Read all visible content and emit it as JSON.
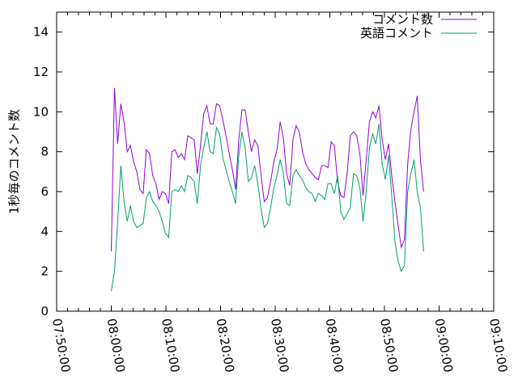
{
  "chart_data": {
    "type": "line",
    "ylabel": "1秒毎のコメント数",
    "xlim": [
      "07:50:00",
      "09:10:00"
    ],
    "ylim": [
      0,
      15
    ],
    "xticks": [
      "07:50:00",
      "08:00:00",
      "08:10:00",
      "08:20:00",
      "08:30:00",
      "08:40:00",
      "08:50:00",
      "09:00:00",
      "09:10:00"
    ],
    "yticks": [
      0,
      2,
      4,
      6,
      8,
      10,
      12,
      14
    ],
    "grid": false,
    "legend_position": "top-right",
    "colors": {
      "series1": "#9400d3",
      "series2": "#009e73"
    },
    "series": [
      {
        "name": "コメント数",
        "color": "#9400d3",
        "points": [
          [
            "08:00:00",
            3.0
          ],
          [
            "08:00:35",
            11.2
          ],
          [
            "08:01:10",
            8.4
          ],
          [
            "08:01:45",
            10.4
          ],
          [
            "08:02:20",
            9.5
          ],
          [
            "08:02:55",
            8.0
          ],
          [
            "08:03:30",
            8.3
          ],
          [
            "08:04:05",
            7.5
          ],
          [
            "08:04:40",
            7.0
          ],
          [
            "08:05:15",
            6.1
          ],
          [
            "08:05:50",
            5.9
          ],
          [
            "08:06:25",
            8.1
          ],
          [
            "08:07:00",
            7.9
          ],
          [
            "08:07:35",
            6.8
          ],
          [
            "08:08:10",
            6.4
          ],
          [
            "08:08:45",
            5.6
          ],
          [
            "08:09:20",
            6.0
          ],
          [
            "08:09:55",
            5.9
          ],
          [
            "08:10:30",
            5.4
          ],
          [
            "08:11:05",
            8.0
          ],
          [
            "08:11:40",
            8.1
          ],
          [
            "08:12:15",
            7.7
          ],
          [
            "08:12:50",
            7.9
          ],
          [
            "08:13:25",
            7.6
          ],
          [
            "08:14:00",
            8.8
          ],
          [
            "08:14:35",
            8.7
          ],
          [
            "08:15:10",
            8.6
          ],
          [
            "08:15:45",
            6.9
          ],
          [
            "08:16:20",
            8.3
          ],
          [
            "08:16:55",
            9.9
          ],
          [
            "08:17:30",
            10.3
          ],
          [
            "08:18:05",
            9.4
          ],
          [
            "08:18:40",
            9.4
          ],
          [
            "08:19:15",
            10.4
          ],
          [
            "08:19:50",
            10.3
          ],
          [
            "08:20:25",
            9.6
          ],
          [
            "08:21:00",
            8.8
          ],
          [
            "08:21:35",
            7.9
          ],
          [
            "08:22:10",
            7.1
          ],
          [
            "08:22:45",
            6.1
          ],
          [
            "08:23:20",
            8.6
          ],
          [
            "08:23:55",
            10.1
          ],
          [
            "08:24:30",
            10.1
          ],
          [
            "08:25:05",
            9.0
          ],
          [
            "08:25:40",
            8.0
          ],
          [
            "08:26:15",
            8.6
          ],
          [
            "08:26:50",
            8.3
          ],
          [
            "08:27:25",
            6.8
          ],
          [
            "08:28:00",
            5.5
          ],
          [
            "08:28:35",
            5.7
          ],
          [
            "08:29:10",
            6.5
          ],
          [
            "08:29:45",
            7.5
          ],
          [
            "08:30:20",
            8.1
          ],
          [
            "08:30:55",
            9.5
          ],
          [
            "08:31:30",
            8.7
          ],
          [
            "08:32:05",
            6.9
          ],
          [
            "08:32:40",
            6.3
          ],
          [
            "08:33:15",
            8.6
          ],
          [
            "08:33:50",
            9.3
          ],
          [
            "08:34:25",
            9.0
          ],
          [
            "08:35:00",
            8.0
          ],
          [
            "08:35:35",
            7.4
          ],
          [
            "08:36:10",
            7.1
          ],
          [
            "08:36:45",
            6.9
          ],
          [
            "08:37:20",
            6.7
          ],
          [
            "08:37:55",
            6.6
          ],
          [
            "08:38:30",
            7.3
          ],
          [
            "08:39:05",
            7.3
          ],
          [
            "08:39:40",
            7.2
          ],
          [
            "08:40:15",
            8.5
          ],
          [
            "08:40:50",
            8.3
          ],
          [
            "08:41:25",
            6.5
          ],
          [
            "08:42:00",
            5.8
          ],
          [
            "08:42:35",
            5.7
          ],
          [
            "08:43:10",
            6.9
          ],
          [
            "08:43:45",
            8.8
          ],
          [
            "08:44:20",
            9.0
          ],
          [
            "08:44:55",
            8.8
          ],
          [
            "08:45:30",
            7.9
          ],
          [
            "08:46:05",
            5.8
          ],
          [
            "08:46:40",
            7.6
          ],
          [
            "08:47:15",
            9.5
          ],
          [
            "08:47:50",
            10.0
          ],
          [
            "08:48:25",
            9.7
          ],
          [
            "08:49:00",
            10.3
          ],
          [
            "08:49:35",
            8.6
          ],
          [
            "08:50:10",
            7.6
          ],
          [
            "08:50:45",
            8.4
          ],
          [
            "08:51:20",
            6.8
          ],
          [
            "08:51:55",
            5.5
          ],
          [
            "08:52:30",
            4.3
          ],
          [
            "08:53:05",
            3.2
          ],
          [
            "08:53:40",
            3.6
          ],
          [
            "08:54:15",
            7.4
          ],
          [
            "08:54:50",
            9.1
          ],
          [
            "08:55:25",
            10.0
          ],
          [
            "08:56:00",
            10.8
          ],
          [
            "08:56:35",
            7.6
          ],
          [
            "08:57:10",
            6.0
          ]
        ]
      },
      {
        "name": "英語コメント",
        "color": "#009e73",
        "points": [
          [
            "08:00:00",
            1.0
          ],
          [
            "08:00:35",
            2.0
          ],
          [
            "08:01:10",
            4.5
          ],
          [
            "08:01:45",
            7.3
          ],
          [
            "08:02:20",
            5.5
          ],
          [
            "08:02:55",
            4.5
          ],
          [
            "08:03:30",
            5.3
          ],
          [
            "08:04:05",
            4.5
          ],
          [
            "08:04:40",
            4.2
          ],
          [
            "08:05:15",
            4.3
          ],
          [
            "08:05:50",
            4.4
          ],
          [
            "08:06:25",
            5.7
          ],
          [
            "08:07:00",
            6.0
          ],
          [
            "08:07:35",
            5.5
          ],
          [
            "08:08:10",
            5.3
          ],
          [
            "08:08:45",
            5.0
          ],
          [
            "08:09:20",
            4.5
          ],
          [
            "08:09:55",
            3.9
          ],
          [
            "08:10:30",
            3.7
          ],
          [
            "08:11:05",
            6.0
          ],
          [
            "08:11:40",
            6.1
          ],
          [
            "08:12:15",
            6.0
          ],
          [
            "08:12:50",
            6.3
          ],
          [
            "08:13:25",
            6.0
          ],
          [
            "08:14:00",
            6.8
          ],
          [
            "08:14:35",
            6.7
          ],
          [
            "08:15:10",
            6.5
          ],
          [
            "08:15:45",
            5.4
          ],
          [
            "08:16:20",
            7.3
          ],
          [
            "08:16:55",
            8.2
          ],
          [
            "08:17:30",
            9.0
          ],
          [
            "08:18:05",
            8.0
          ],
          [
            "08:18:40",
            7.9
          ],
          [
            "08:19:15",
            9.2
          ],
          [
            "08:19:50",
            8.9
          ],
          [
            "08:20:25",
            7.7
          ],
          [
            "08:21:00",
            7.1
          ],
          [
            "08:21:35",
            6.5
          ],
          [
            "08:22:10",
            6.0
          ],
          [
            "08:22:45",
            5.4
          ],
          [
            "08:23:20",
            7.8
          ],
          [
            "08:23:55",
            9.0
          ],
          [
            "08:24:30",
            8.2
          ],
          [
            "08:25:05",
            6.5
          ],
          [
            "08:25:40",
            6.7
          ],
          [
            "08:26:15",
            7.3
          ],
          [
            "08:26:50",
            6.4
          ],
          [
            "08:27:25",
            5.1
          ],
          [
            "08:28:00",
            4.2
          ],
          [
            "08:28:35",
            4.4
          ],
          [
            "08:29:10",
            5.2
          ],
          [
            "08:29:45",
            6.2
          ],
          [
            "08:30:20",
            6.8
          ],
          [
            "08:30:55",
            7.6
          ],
          [
            "08:31:30",
            6.9
          ],
          [
            "08:32:05",
            5.4
          ],
          [
            "08:32:40",
            5.3
          ],
          [
            "08:33:15",
            6.8
          ],
          [
            "08:33:50",
            7.1
          ],
          [
            "08:34:25",
            6.8
          ],
          [
            "08:35:00",
            6.6
          ],
          [
            "08:35:35",
            6.2
          ],
          [
            "08:36:10",
            6.0
          ],
          [
            "08:36:45",
            5.9
          ],
          [
            "08:37:20",
            5.5
          ],
          [
            "08:37:55",
            5.9
          ],
          [
            "08:38:30",
            5.8
          ],
          [
            "08:39:05",
            5.6
          ],
          [
            "08:39:40",
            6.4
          ],
          [
            "08:40:15",
            6.4
          ],
          [
            "08:40:50",
            5.9
          ],
          [
            "08:41:25",
            6.8
          ],
          [
            "08:42:00",
            5.0
          ],
          [
            "08:42:35",
            4.6
          ],
          [
            "08:43:10",
            4.9
          ],
          [
            "08:43:45",
            5.2
          ],
          [
            "08:44:20",
            6.9
          ],
          [
            "08:44:55",
            6.8
          ],
          [
            "08:45:30",
            6.2
          ],
          [
            "08:46:05",
            4.5
          ],
          [
            "08:46:40",
            6.0
          ],
          [
            "08:47:15",
            8.2
          ],
          [
            "08:47:50",
            8.9
          ],
          [
            "08:48:25",
            8.4
          ],
          [
            "08:49:00",
            9.4
          ],
          [
            "08:49:35",
            7.4
          ],
          [
            "08:50:10",
            6.6
          ],
          [
            "08:50:45",
            7.8
          ],
          [
            "08:51:20",
            5.8
          ],
          [
            "08:51:55",
            3.5
          ],
          [
            "08:52:30",
            2.5
          ],
          [
            "08:53:05",
            2.0
          ],
          [
            "08:53:40",
            2.3
          ],
          [
            "08:54:15",
            6.0
          ],
          [
            "08:54:50",
            6.9
          ],
          [
            "08:55:25",
            7.6
          ],
          [
            "08:56:00",
            6.0
          ],
          [
            "08:56:35",
            5.2
          ],
          [
            "08:57:10",
            3.0
          ]
        ]
      }
    ]
  }
}
